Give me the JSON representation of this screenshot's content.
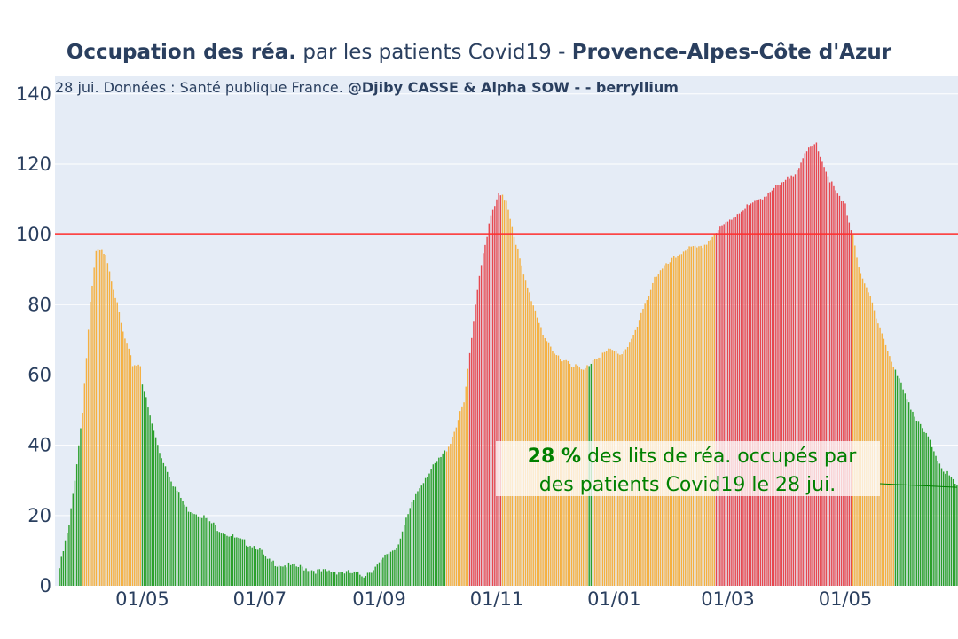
{
  "title": {
    "bold1": "Occupation des réa.",
    "normal": " par les patients Covid19 - ",
    "bold2": "Provence-Alpes-Côte d'Azur"
  },
  "subtitle": {
    "normal": "28 jui. Données : Santé publique France. ",
    "bold": "@Djiby CASSE & Alpha SOW -  - berryllium"
  },
  "annotation": {
    "value": "28",
    "unit": " %",
    "line1_rest": " des lits de réa. occupés par",
    "line2": "des patients Covid19 le 28 jui."
  },
  "colors": {
    "green": "#2ca02c",
    "orange": "#f5b041",
    "red": "#e6484f",
    "threshold": "#ff2d2d",
    "annotation_text": "#008000",
    "plot_bg": "#e5ecf6",
    "grid": "#ffffff",
    "text": "#2a3f5f"
  },
  "chart_data": {
    "type": "bar",
    "x_start": "2020-03-19",
    "x_end": "2021-06-28",
    "xlabel": "",
    "ylabel": "",
    "ylim": [
      0,
      145
    ],
    "yticks": [
      0,
      20,
      40,
      60,
      80,
      100,
      120,
      140
    ],
    "xticks": [
      {
        "date": "2020-05-01",
        "label": "01/05"
      },
      {
        "date": "2020-07-01",
        "label": "01/07"
      },
      {
        "date": "2020-09-01",
        "label": "01/09"
      },
      {
        "date": "2020-11-01",
        "label": "01/11"
      },
      {
        "date": "2021-01-01",
        "label": "01/01"
      },
      {
        "date": "2021-03-01",
        "label": "01/03"
      },
      {
        "date": "2021-05-01",
        "label": "01/05"
      }
    ],
    "threshold": 100,
    "grid": true,
    "last_value": 28,
    "last_date": "2021-06-28",
    "color_segments": [
      {
        "from": "2020-03-19",
        "to": "2020-03-30",
        "color": "green"
      },
      {
        "from": "2020-03-31",
        "to": "2020-04-30",
        "color": "orange"
      },
      {
        "from": "2020-05-01",
        "to": "2020-10-31",
        "color": "green"
      },
      {
        "from": "2020-10-06",
        "to": "2020-10-17",
        "color": "orange"
      },
      {
        "from": "2020-10-18",
        "to": "2020-11-03",
        "color": "red"
      },
      {
        "from": "2020-11-04",
        "to": "2020-12-18",
        "color": "orange"
      },
      {
        "from": "2020-12-19",
        "to": "2020-12-20",
        "color": "green"
      },
      {
        "from": "2020-12-21",
        "to": "2021-02-22",
        "color": "orange"
      },
      {
        "from": "2021-02-23",
        "to": "2021-05-04",
        "color": "red"
      },
      {
        "from": "2021-05-05",
        "to": "2021-05-26",
        "color": "orange"
      },
      {
        "from": "2021-05-27",
        "to": "2021-06-28",
        "color": "green"
      }
    ],
    "keypoints": [
      [
        "2020-03-19",
        5
      ],
      [
        "2020-03-24",
        17
      ],
      [
        "2020-03-28",
        35
      ],
      [
        "2020-03-31",
        50
      ],
      [
        "2020-04-04",
        80
      ],
      [
        "2020-04-07",
        95
      ],
      [
        "2020-04-12",
        95
      ],
      [
        "2020-04-16",
        85
      ],
      [
        "2020-04-21",
        72
      ],
      [
        "2020-04-26",
        63
      ],
      [
        "2020-04-30",
        63
      ],
      [
        "2020-05-01",
        58
      ],
      [
        "2020-05-05",
        48
      ],
      [
        "2020-05-10",
        38
      ],
      [
        "2020-05-17",
        29
      ],
      [
        "2020-05-24",
        22
      ],
      [
        "2020-06-01",
        20
      ],
      [
        "2020-06-10",
        16
      ],
      [
        "2020-06-20",
        13
      ],
      [
        "2020-06-30",
        11
      ],
      [
        "2020-07-05",
        7
      ],
      [
        "2020-07-12",
        6
      ],
      [
        "2020-07-25",
        5
      ],
      [
        "2020-08-01",
        4
      ],
      [
        "2020-08-12",
        4
      ],
      [
        "2020-08-24",
        3
      ],
      [
        "2020-09-01",
        6
      ],
      [
        "2020-09-05",
        9
      ],
      [
        "2020-09-10",
        11
      ],
      [
        "2020-09-14",
        17
      ],
      [
        "2020-09-20",
        26
      ],
      [
        "2020-09-25",
        31
      ],
      [
        "2020-10-01",
        35
      ],
      [
        "2020-10-05",
        38
      ],
      [
        "2020-10-08",
        41
      ],
      [
        "2020-10-15",
        52
      ],
      [
        "2020-10-19",
        70
      ],
      [
        "2020-10-22",
        85
      ],
      [
        "2020-10-25",
        95
      ],
      [
        "2020-10-29",
        105
      ],
      [
        "2020-11-02",
        111
      ],
      [
        "2020-11-06",
        110
      ],
      [
        "2020-11-10",
        100
      ],
      [
        "2020-11-15",
        88
      ],
      [
        "2020-11-20",
        80
      ],
      [
        "2020-11-25",
        72
      ],
      [
        "2020-11-30",
        66
      ],
      [
        "2020-12-08",
        64
      ],
      [
        "2020-12-16",
        61
      ],
      [
        "2020-12-22",
        65
      ],
      [
        "2020-12-30",
        67
      ],
      [
        "2021-01-05",
        66
      ],
      [
        "2021-01-12",
        72
      ],
      [
        "2021-01-17",
        80
      ],
      [
        "2021-01-22",
        88
      ],
      [
        "2021-01-30",
        92
      ],
      [
        "2021-02-07",
        96
      ],
      [
        "2021-02-15",
        96
      ],
      [
        "2021-02-22",
        100
      ],
      [
        "2021-02-28",
        103
      ],
      [
        "2021-03-08",
        107
      ],
      [
        "2021-03-15",
        109
      ],
      [
        "2021-03-22",
        112
      ],
      [
        "2021-03-29",
        114
      ],
      [
        "2021-04-05",
        118
      ],
      [
        "2021-04-12",
        124
      ],
      [
        "2021-04-16",
        126
      ],
      [
        "2021-04-21",
        118
      ],
      [
        "2021-04-26",
        112
      ],
      [
        "2021-05-01",
        108
      ],
      [
        "2021-05-05",
        100
      ],
      [
        "2021-05-09",
        88
      ],
      [
        "2021-05-14",
        82
      ],
      [
        "2021-05-20",
        72
      ],
      [
        "2021-05-26",
        62
      ],
      [
        "2021-06-01",
        55
      ],
      [
        "2021-06-07",
        47
      ],
      [
        "2021-06-13",
        42
      ],
      [
        "2021-06-20",
        34
      ],
      [
        "2021-06-28",
        28
      ]
    ]
  }
}
